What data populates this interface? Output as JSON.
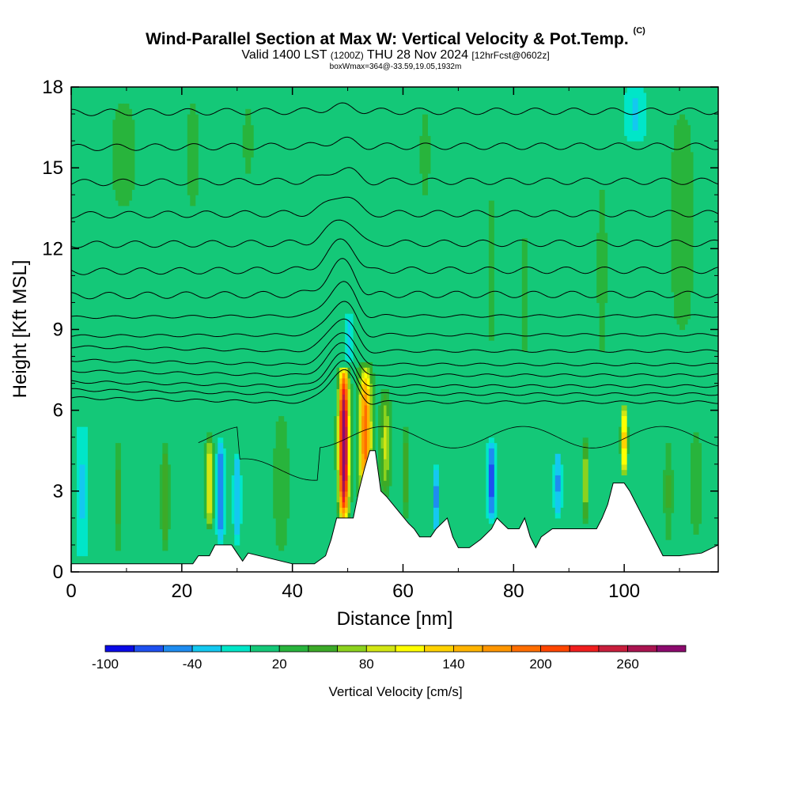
{
  "title": "Wind-Parallel Section at Max W: Vertical Velocity & Pot.Temp.",
  "copyright": "(C)",
  "subtitle": {
    "valid": "Valid 1400 LST",
    "zulu": "(1200Z)",
    "date": "THU 28 Nov 2024",
    "forecast": "[12hrFcst@0602z]"
  },
  "box_info": "boxWmax=364@-33.59,19.05,1932m",
  "chart_data": {
    "type": "heatmap",
    "title": "Wind-Parallel Section at Max W: Vertical Velocity & Pot.Temp.",
    "xlabel": "Distance [nm]",
    "ylabel": "Height [Kft MSL]",
    "xlim": [
      0,
      117
    ],
    "ylim": [
      0,
      18
    ],
    "x_ticks": [
      0,
      20,
      40,
      60,
      80,
      100
    ],
    "y_ticks": [
      0,
      3,
      6,
      9,
      12,
      15,
      18
    ],
    "colorbar": {
      "label": "Vertical Velocity [cm/s]",
      "ticks": [
        -100,
        -40,
        20,
        80,
        140,
        200,
        260
      ],
      "levels": [
        -100,
        -80,
        -60,
        -40,
        -20,
        0,
        20,
        40,
        60,
        80,
        100,
        120,
        140,
        160,
        180,
        200,
        220,
        240,
        260,
        280,
        300
      ],
      "colors": [
        "#0a0ae6",
        "#1e50f0",
        "#1e8cf0",
        "#14c8f0",
        "#00e6c8",
        "#14c878",
        "#28b43c",
        "#3caa28",
        "#8cd21e",
        "#d2e614",
        "#ffff00",
        "#ffd200",
        "#ffb400",
        "#ff9600",
        "#ff6e00",
        "#ff4600",
        "#f01e1e",
        "#c81e3c",
        "#aa1450",
        "#8c0a6e"
      ]
    },
    "background_w": 5,
    "terrain": [
      [
        0,
        0.3
      ],
      [
        22,
        0.3
      ],
      [
        23,
        0.6
      ],
      [
        25,
        0.6
      ],
      [
        26,
        1.0
      ],
      [
        29,
        1.0
      ],
      [
        30,
        0.7
      ],
      [
        31,
        0.4
      ],
      [
        32,
        0.7
      ],
      [
        40,
        0.3
      ],
      [
        44,
        0.3
      ],
      [
        46,
        0.6
      ],
      [
        47,
        1.2
      ],
      [
        48,
        2.0
      ],
      [
        51,
        2.0
      ],
      [
        52,
        3.0
      ],
      [
        53,
        3.8
      ],
      [
        54,
        4.5
      ],
      [
        55,
        4.5
      ],
      [
        56,
        3.0
      ],
      [
        57,
        2.8
      ],
      [
        59,
        2.3
      ],
      [
        61,
        1.8
      ],
      [
        62,
        1.6
      ],
      [
        63,
        1.3
      ],
      [
        65,
        1.3
      ],
      [
        66,
        1.6
      ],
      [
        68,
        2.0
      ],
      [
        69,
        1.3
      ],
      [
        70,
        0.9
      ],
      [
        72,
        0.9
      ],
      [
        74,
        1.2
      ],
      [
        76,
        1.6
      ],
      [
        77,
        2.0
      ],
      [
        79,
        1.6
      ],
      [
        81,
        1.6
      ],
      [
        82,
        2.0
      ],
      [
        83,
        1.3
      ],
      [
        84,
        0.9
      ],
      [
        85,
        1.3
      ],
      [
        87,
        1.6
      ],
      [
        95,
        1.6
      ],
      [
        96,
        2.0
      ],
      [
        97,
        2.5
      ],
      [
        98,
        3.3
      ],
      [
        100,
        3.3
      ],
      [
        101,
        3.0
      ],
      [
        102,
        2.6
      ],
      [
        104,
        1.8
      ],
      [
        106,
        1.0
      ],
      [
        107,
        0.6
      ],
      [
        110,
        0.6
      ],
      [
        114,
        0.7
      ],
      [
        117,
        1.0
      ]
    ],
    "features": [
      {
        "x": 49.3,
        "z0": 1.8,
        "z1": 7.7,
        "w": 310,
        "width": 0.9
      },
      {
        "x": 53.2,
        "z0": 2.5,
        "z1": 7.8,
        "w": 190,
        "width": 1.1
      },
      {
        "x": 56.8,
        "z0": 2.8,
        "z1": 6.8,
        "w": 80,
        "width": 0.9
      },
      {
        "x": 25.0,
        "z0": 1.5,
        "z1": 5.2,
        "w": 110,
        "width": 0.6
      },
      {
        "x": 100.0,
        "z0": 3.5,
        "z1": 6.3,
        "w": 150,
        "width": 0.5
      },
      {
        "x": 93.0,
        "z0": 1.7,
        "z1": 5.0,
        "w": 85,
        "width": 0.45
      },
      {
        "x": 60.5,
        "z0": 2.0,
        "z1": 5.5,
        "w": 55,
        "width": 0.6
      },
      {
        "x": 17.0,
        "z0": 0.6,
        "z1": 5.0,
        "w": 55,
        "width": 0.7
      },
      {
        "x": 8.5,
        "z0": 0.6,
        "z1": 5.0,
        "w": 45,
        "width": 0.7
      },
      {
        "x": 27.0,
        "z0": 1.0,
        "z1": 5.0,
        "w": -80,
        "width": 0.5
      },
      {
        "x": 30.0,
        "z0": 1.0,
        "z1": 4.5,
        "w": -55,
        "width": 0.5
      },
      {
        "x": 66.0,
        "z0": 1.5,
        "z1": 4.0,
        "w": -70,
        "width": 0.4
      },
      {
        "x": 76.0,
        "z0": 1.8,
        "z1": 5.0,
        "w": -90,
        "width": 0.5
      },
      {
        "x": 88.0,
        "z0": 2.0,
        "z1": 4.5,
        "w": -60,
        "width": 0.5
      },
      {
        "x": 2.0,
        "z0": 0.5,
        "z1": 5.5,
        "w": -30,
        "width": 0.9
      },
      {
        "x": 50.3,
        "z0": 7.8,
        "z1": 9.6,
        "w": -40,
        "width": 0.5
      },
      {
        "x": 38.0,
        "z0": 0.6,
        "z1": 6.0,
        "w": 35,
        "width": 1.5
      },
      {
        "x": 113.0,
        "z0": 1.0,
        "z1": 5.5,
        "w": 30,
        "width": 1.2
      },
      {
        "x": 108.0,
        "z0": 1.0,
        "z1": 5.0,
        "w": 40,
        "width": 0.8
      },
      {
        "x": 110.5,
        "z0": 8.0,
        "z1": 18.0,
        "w": 25,
        "width": 3.0
      },
      {
        "x": 96.0,
        "z0": 6.5,
        "z1": 16.0,
        "w": 20,
        "width": 1.5
      },
      {
        "x": 76.0,
        "z0": 7.5,
        "z1": 15.0,
        "w": 22,
        "width": 1.0
      },
      {
        "x": 82.0,
        "z0": 6.5,
        "z1": 14.0,
        "w": 20,
        "width": 0.8
      },
      {
        "x": 9.5,
        "z0": 13.0,
        "z1": 18.0,
        "w": 25,
        "width": 3.0
      },
      {
        "x": 22.0,
        "z0": 13.0,
        "z1": 18.0,
        "w": 22,
        "width": 2.0
      },
      {
        "x": 32.0,
        "z0": 14.0,
        "z1": 18.0,
        "w": 20,
        "width": 1.5
      },
      {
        "x": 64.0,
        "z0": 13.0,
        "z1": 18.0,
        "w": 20,
        "width": 1.5
      },
      {
        "x": 102.0,
        "z0": 16.0,
        "z1": 18.0,
        "w": -30,
        "width": 1.5
      }
    ],
    "theta_levels": [
      6.3,
      6.6,
      6.9,
      7.3,
      7.7,
      8.2,
      8.8,
      9.5,
      10.3,
      11.2,
      12.2,
      13.3,
      14.5,
      15.8,
      17.1
    ],
    "mountain_wave": {
      "x": 49.5,
      "width": 4.0
    }
  }
}
